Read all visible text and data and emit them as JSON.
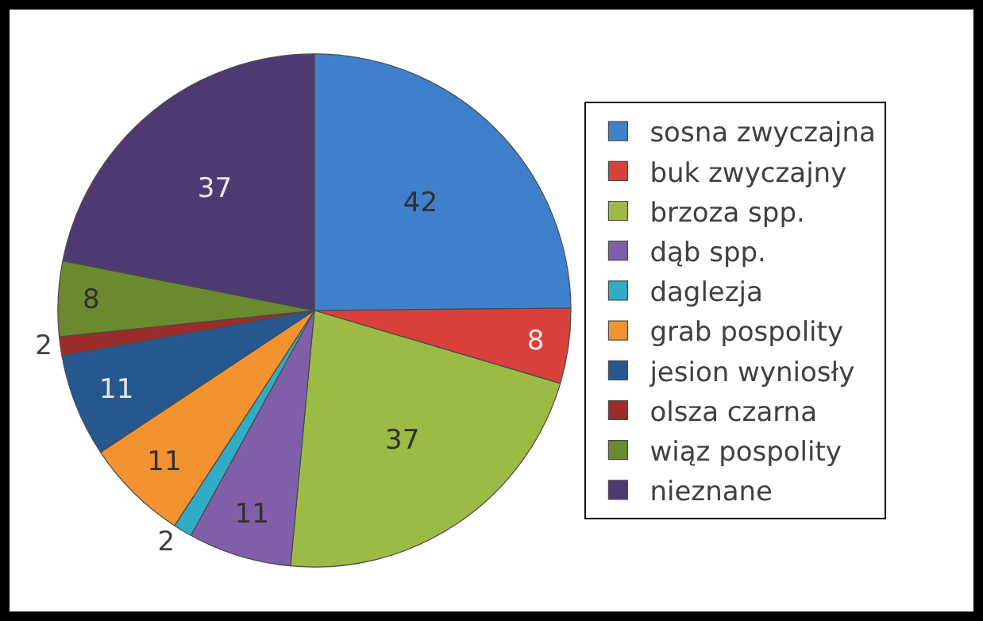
{
  "chart_data": {
    "type": "pie",
    "categories": [
      "sosna zwyczajna",
      "buk zwyczajny",
      "brzoza spp.",
      "dąb spp.",
      "daglezja",
      "grab pospolity",
      "jesion wyniosły",
      "olsza czarna",
      "wiąz pospolity",
      "nieznane"
    ],
    "values": [
      42,
      8,
      37,
      11,
      2,
      11,
      11,
      2,
      8,
      37
    ],
    "colors": [
      "#3f80cd",
      "#d9403c",
      "#9bbb45",
      "#7f5fa9",
      "#32abc6",
      "#f39230",
      "#27578f",
      "#9b2c2a",
      "#6b8a2f",
      "#4e3a73"
    ],
    "data_labels": true,
    "legend": "right"
  }
}
